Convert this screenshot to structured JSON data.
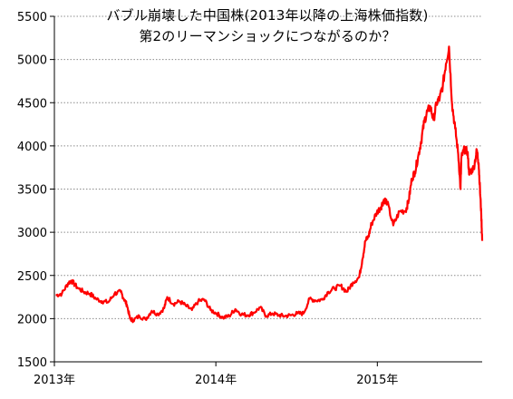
{
  "chart_data": {
    "type": "line",
    "title_lines": [
      "バブル崩壊した中国株(2013年以降の上海株価指数)",
      "第2のリーマンショックにつながるのか？"
    ],
    "xlabel": "",
    "ylabel": "",
    "x_range": [
      "2013-01-01",
      "2015-08-26"
    ],
    "ylim": [
      1500,
      5500
    ],
    "y_ticks": [
      "1500",
      "2000",
      "2500",
      "3000",
      "3500",
      "4000",
      "4500",
      "5000",
      "5500"
    ],
    "x_ticks": [
      {
        "label": "2013年",
        "date": "2013-01-01"
      },
      {
        "label": "2014年",
        "date": "2014-01-01"
      },
      {
        "label": "2015年",
        "date": "2015-01-01"
      }
    ],
    "grid": "horizontal-dotted",
    "line_color": "#ff0000",
    "series": [
      {
        "x": [
          "2013-01-04",
          "2013-01-18",
          "2013-02-01",
          "2013-02-08",
          "2013-02-22",
          "2013-03-08",
          "2013-03-22",
          "2013-04-05",
          "2013-04-19",
          "2013-05-03",
          "2013-05-17",
          "2013-05-31",
          "2013-06-07",
          "2013-06-14",
          "2013-06-21",
          "2013-06-28",
          "2013-07-12",
          "2013-07-26",
          "2013-08-09",
          "2013-08-23",
          "2013-09-06",
          "2013-09-13",
          "2013-09-27",
          "2013-10-11",
          "2013-10-25",
          "2013-11-08",
          "2013-11-22",
          "2013-12-06",
          "2013-12-20",
          "2014-01-03",
          "2014-01-17",
          "2014-01-31",
          "2014-02-14",
          "2014-02-28",
          "2014-03-14",
          "2014-03-28",
          "2014-04-11",
          "2014-04-25",
          "2014-05-09",
          "2014-05-23",
          "2014-06-06",
          "2014-06-20",
          "2014-07-04",
          "2014-07-18",
          "2014-08-01",
          "2014-08-15",
          "2014-08-29",
          "2014-09-12",
          "2014-09-26",
          "2014-10-10",
          "2014-10-24",
          "2014-11-07",
          "2014-11-21",
          "2014-11-28",
          "2014-12-05",
          "2014-12-12",
          "2014-12-19",
          "2014-12-31",
          "2015-01-09",
          "2015-01-16",
          "2015-01-23",
          "2015-02-06",
          "2015-02-20",
          "2015-03-06",
          "2015-03-13",
          "2015-03-20",
          "2015-03-27",
          "2015-04-03",
          "2015-04-10",
          "2015-04-17",
          "2015-04-24",
          "2015-05-01",
          "2015-05-08",
          "2015-05-15",
          "2015-05-22",
          "2015-05-29",
          "2015-06-05",
          "2015-06-12",
          "2015-06-19",
          "2015-06-26",
          "2015-07-03",
          "2015-07-08",
          "2015-07-10",
          "2015-07-17",
          "2015-07-24",
          "2015-07-27",
          "2015-07-31",
          "2015-08-07",
          "2015-08-14",
          "2015-08-18",
          "2015-08-21",
          "2015-08-24",
          "2015-08-26"
        ],
        "values": [
          2270,
          2290,
          2410,
          2440,
          2360,
          2310,
          2290,
          2230,
          2200,
          2190,
          2290,
          2310,
          2230,
          2160,
          2000,
          1980,
          2030,
          1990,
          2090,
          2050,
          2120,
          2250,
          2170,
          2200,
          2150,
          2100,
          2200,
          2220,
          2100,
          2060,
          2010,
          2030,
          2110,
          2050,
          2040,
          2070,
          2130,
          2030,
          2060,
          2040,
          2030,
          2040,
          2060,
          2060,
          2230,
          2210,
          2220,
          2310,
          2350,
          2380,
          2310,
          2420,
          2480,
          2680,
          2900,
          2950,
          3100,
          3230,
          3290,
          3380,
          3350,
          3080,
          3240,
          3250,
          3370,
          3620,
          3700,
          3870,
          4050,
          4280,
          4400,
          4450,
          4300,
          4500,
          4550,
          4700,
          4950,
          5150,
          4480,
          4200,
          3900,
          3500,
          3870,
          3960,
          3930,
          3700,
          3700,
          3750,
          3950,
          3800,
          3500,
          3200,
          2900
        ]
      }
    ]
  }
}
